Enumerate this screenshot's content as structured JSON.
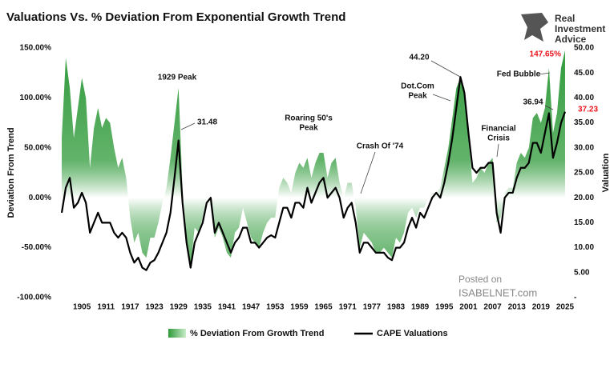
{
  "chart_data": {
    "type": "area-line",
    "title": "Valuations Vs. % Deviation From Exponential Growth Trend",
    "ylabel": "Deviation From Trend",
    "y2label": "Valuation",
    "logo": {
      "line1": "Real",
      "line2": "Investment",
      "line3": "Advice"
    },
    "watermark": {
      "line1": "Posted on",
      "line2": "ISABELNET.com"
    },
    "annotations": [
      {
        "lines": [
          "1929 Peak"
        ]
      },
      {
        "lines": [
          "Roaring 50's",
          "Peak"
        ]
      },
      {
        "lines": [
          "Crash Of '74"
        ]
      },
      {
        "lines": [
          "Dot.Com",
          "Peak"
        ]
      },
      {
        "lines": [
          "Financial",
          "Crisis"
        ]
      },
      {
        "lines": [
          "Fed Bubble"
        ]
      }
    ],
    "x": [
      1900,
      1901,
      1902,
      1903,
      1904,
      1905,
      1906,
      1907,
      1908,
      1909,
      1910,
      1911,
      1912,
      1913,
      1914,
      1915,
      1916,
      1917,
      1918,
      1919,
      1920,
      1921,
      1922,
      1923,
      1924,
      1925,
      1926,
      1927,
      1928,
      1929,
      1930,
      1931,
      1932,
      1933,
      1934,
      1935,
      1936,
      1937,
      1938,
      1939,
      1940,
      1941,
      1942,
      1943,
      1944,
      1945,
      1946,
      1947,
      1948,
      1949,
      1950,
      1951,
      1952,
      1953,
      1954,
      1955,
      1956,
      1957,
      1958,
      1959,
      1960,
      1961,
      1962,
      1963,
      1964,
      1965,
      1966,
      1967,
      1968,
      1969,
      1970,
      1971,
      1972,
      1973,
      1974,
      1975,
      1976,
      1977,
      1978,
      1979,
      1980,
      1981,
      1982,
      1983,
      1984,
      1985,
      1986,
      1987,
      1988,
      1989,
      1990,
      1991,
      1992,
      1993,
      1994,
      1995,
      1996,
      1997,
      1998,
      1999,
      2000,
      2001,
      2002,
      2003,
      2004,
      2005,
      2006,
      2007,
      2008,
      2009,
      2010,
      2011,
      2012,
      2013,
      2014,
      2015,
      2016,
      2017,
      2018,
      2019,
      2020,
      2021,
      2022,
      2023,
      2024,
      2025
    ],
    "series": [
      {
        "name": "% Deviation From Growth Trend",
        "color": "#2f9a3a",
        "values": [
          60,
          140,
          110,
          60,
          90,
          120,
          100,
          30,
          70,
          90,
          70,
          80,
          75,
          50,
          30,
          40,
          20,
          -20,
          -45,
          -35,
          -55,
          -60,
          -40,
          -40,
          -25,
          -5,
          10,
          40,
          75,
          110,
          10,
          -40,
          -70,
          -30,
          -35,
          -20,
          0,
          -10,
          -40,
          -30,
          -40,
          -55,
          -60,
          -35,
          -30,
          -10,
          -25,
          -40,
          -45,
          -50,
          -35,
          -25,
          -20,
          -20,
          10,
          20,
          15,
          5,
          25,
          35,
          30,
          40,
          20,
          35,
          45,
          45,
          20,
          35,
          40,
          15,
          0,
          15,
          15,
          -10,
          -50,
          -35,
          -40,
          -45,
          -55,
          -55,
          -50,
          -55,
          -60,
          -40,
          -45,
          -35,
          -15,
          -10,
          -20,
          -10,
          -10,
          0,
          5,
          5,
          10,
          30,
          50,
          80,
          110,
          120,
          110,
          60,
          15,
          20,
          30,
          25,
          35,
          40,
          -25,
          -20,
          5,
          10,
          10,
          35,
          45,
          40,
          50,
          80,
          85,
          75,
          90,
          130,
          65,
          85,
          130,
          147.65
        ],
        "value_labels": [
          null,
          null,
          null,
          null,
          null,
          null,
          null,
          null,
          null,
          null,
          null,
          null,
          null,
          null,
          null,
          null,
          null,
          null,
          null,
          null,
          null,
          null,
          null,
          null,
          null,
          null,
          null,
          null,
          null,
          null,
          null,
          null,
          null,
          null,
          null,
          null,
          null,
          null,
          null,
          null,
          null,
          null,
          null,
          null,
          null,
          null,
          null,
          null,
          null,
          null,
          null,
          null,
          null,
          null,
          null,
          null,
          null,
          null,
          null,
          null,
          null,
          null,
          null,
          null,
          null,
          null,
          null,
          null,
          null,
          null,
          null,
          null,
          null,
          null,
          null,
          null,
          null,
          null,
          null,
          null,
          null,
          null,
          null,
          null,
          null,
          null,
          null,
          null,
          null,
          null,
          null,
          null,
          null,
          null,
          null,
          null,
          null,
          null,
          null,
          null,
          null,
          null,
          null,
          null,
          null,
          null,
          null,
          null,
          null,
          null,
          null,
          null,
          null,
          null,
          null,
          null,
          null,
          null,
          null,
          null,
          null,
          null,
          null,
          null,
          null,
          "147.65%"
        ]
      },
      {
        "name": "CAPE Valuations",
        "color": "#000000",
        "axis": "y2",
        "values": [
          17,
          22,
          24,
          18,
          19,
          21,
          19,
          13,
          15,
          17,
          15,
          15,
          15,
          13,
          12,
          13,
          12,
          9,
          7,
          8,
          6,
          5.5,
          7,
          7.5,
          9,
          11,
          13,
          17,
          24,
          31.48,
          19,
          11,
          6,
          11,
          13,
          15,
          19,
          20,
          13,
          15,
          13,
          11,
          9,
          11,
          12,
          14,
          14,
          11,
          11,
          10,
          11,
          12,
          12.5,
          12,
          15,
          18,
          18,
          16,
          19,
          19,
          18,
          22,
          19,
          21,
          23,
          24,
          20,
          21,
          22,
          20,
          16,
          18,
          19,
          15,
          9,
          11,
          11,
          10,
          9,
          9,
          9,
          8,
          7.5,
          10,
          10,
          11,
          14,
          16,
          14,
          17,
          16,
          18,
          20,
          21,
          20,
          23,
          27,
          32,
          38,
          44.2,
          41,
          33,
          26,
          25,
          26,
          26,
          27,
          27,
          17,
          13,
          20,
          21,
          21,
          24,
          26,
          26,
          27,
          31,
          31,
          29,
          33,
          36.94,
          28,
          31,
          35,
          37.23
        ],
        "value_labels": [
          null,
          null,
          null,
          null,
          null,
          null,
          null,
          null,
          null,
          null,
          null,
          null,
          null,
          null,
          null,
          null,
          null,
          null,
          null,
          null,
          null,
          null,
          null,
          null,
          null,
          null,
          null,
          null,
          null,
          "31.48",
          null,
          null,
          null,
          null,
          null,
          null,
          null,
          null,
          null,
          null,
          null,
          null,
          null,
          null,
          null,
          null,
          null,
          null,
          null,
          null,
          null,
          null,
          null,
          null,
          null,
          null,
          null,
          null,
          null,
          null,
          null,
          null,
          null,
          null,
          null,
          null,
          null,
          null,
          null,
          null,
          null,
          null,
          null,
          null,
          null,
          null,
          null,
          null,
          null,
          null,
          null,
          null,
          null,
          null,
          null,
          null,
          null,
          null,
          null,
          null,
          null,
          null,
          null,
          null,
          null,
          null,
          null,
          null,
          null,
          "44.20",
          null,
          null,
          null,
          null,
          null,
          null,
          null,
          null,
          null,
          null,
          null,
          null,
          null,
          null,
          null,
          null,
          null,
          null,
          null,
          null,
          null,
          "36.94",
          null,
          null,
          null,
          "37.23"
        ]
      }
    ],
    "xlim": [
      1899,
      2026
    ],
    "xticks": [
      1905,
      1911,
      1917,
      1923,
      1929,
      1935,
      1941,
      1947,
      1953,
      1959,
      1965,
      1971,
      1977,
      1983,
      1989,
      1995,
      2001,
      2007,
      2013,
      2019,
      2025
    ],
    "ylim": [
      -100,
      150
    ],
    "yticks": [
      {
        "value": 150,
        "label": "150.00%"
      },
      {
        "value": 100,
        "label": "100.00%"
      },
      {
        "value": 50,
        "label": "50.00%"
      },
      {
        "value": 0,
        "label": "0.00%"
      },
      {
        "value": -50,
        "label": "-50.00%"
      },
      {
        "value": -100,
        "label": "-100.00%"
      }
    ],
    "y2lim": [
      0,
      50
    ],
    "y2ticks": [
      {
        "value": 50,
        "label": "50.00"
      },
      {
        "value": 45,
        "label": "45.00"
      },
      {
        "value": 40,
        "label": "40.00"
      },
      {
        "value": 35,
        "label": "35.00"
      },
      {
        "value": 30,
        "label": "30.00"
      },
      {
        "value": 25,
        "label": "25.00"
      },
      {
        "value": 20,
        "label": "20.00"
      },
      {
        "value": 15,
        "label": "15.00"
      },
      {
        "value": 10,
        "label": "10.00"
      },
      {
        "value": 5,
        "label": "5.00"
      },
      {
        "value": 0,
        "label": "-"
      }
    ],
    "highlight_color": "#e8141c"
  }
}
